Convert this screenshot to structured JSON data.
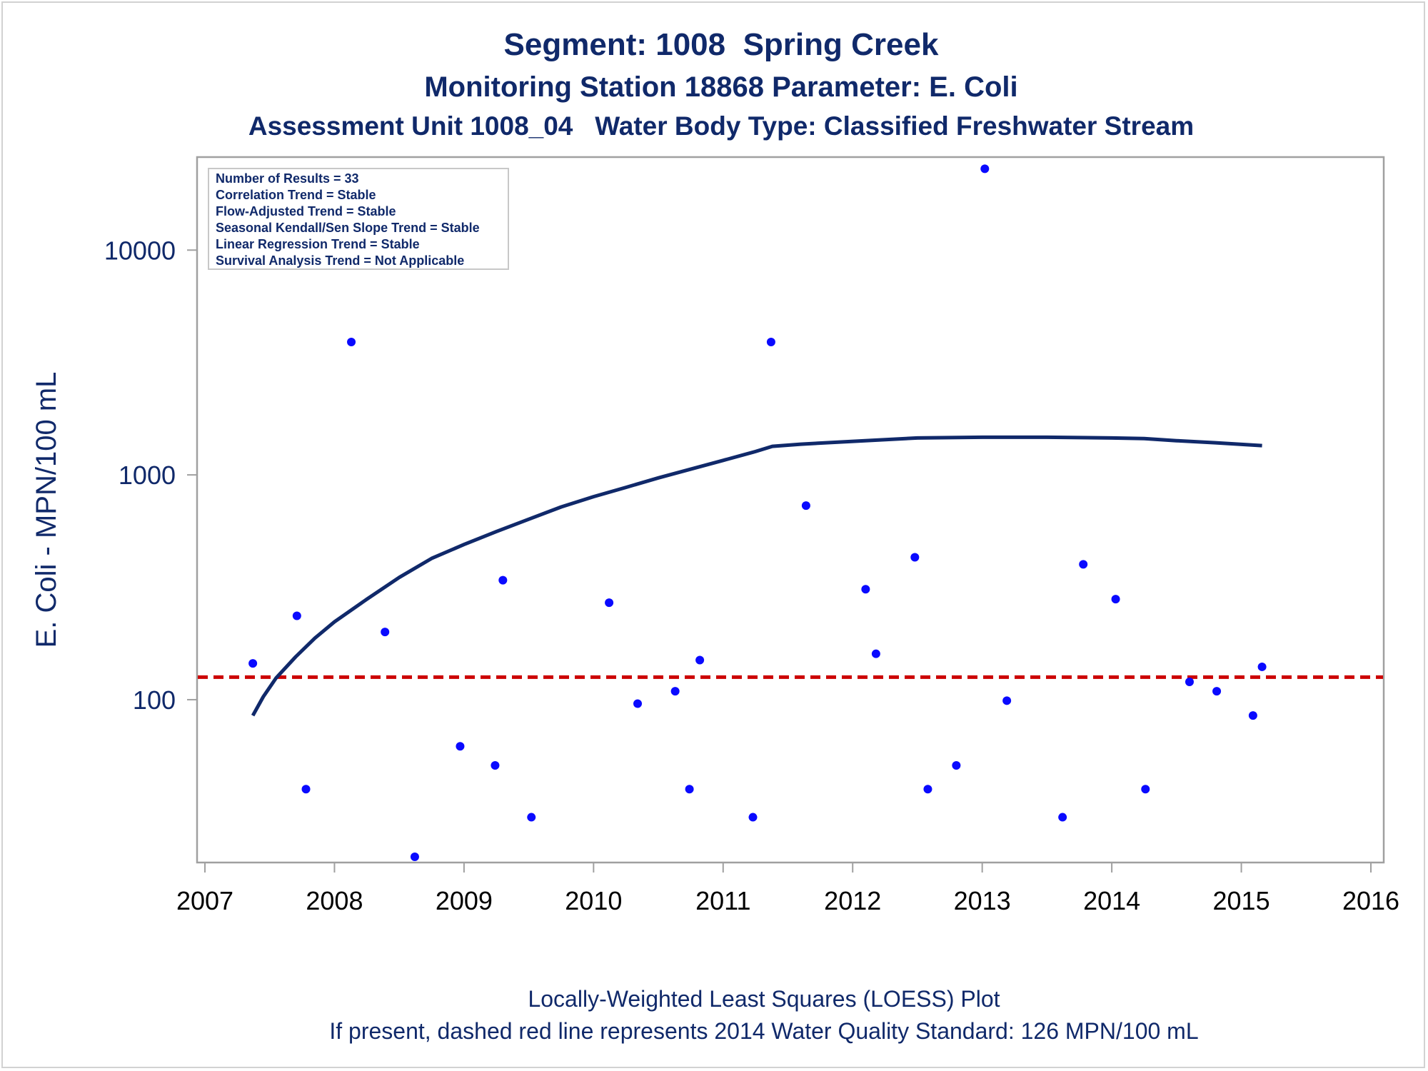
{
  "titles": {
    "line1": "Segment: 1008  Spring Creek",
    "line2": "Monitoring Station 18868 Parameter: E. Coli",
    "line3": "Assessment Unit 1008_04   Water Body Type: Classified Freshwater Stream"
  },
  "footer": {
    "line1": "Locally-Weighted Least Squares (LOESS) Plot",
    "line2": "If present, dashed red line represents 2014 Water Quality Standard: 126 MPN/100 mL"
  },
  "chart_data": {
    "type": "scatter",
    "ylabel": "E. Coli - MPN/100 mL",
    "xlabel": "",
    "y_scale": "log",
    "xlim": [
      2007,
      2016
    ],
    "ylim": [
      20,
      25000
    ],
    "x_ticks": [
      "2007",
      "2008",
      "2009",
      "2010",
      "2011",
      "2012",
      "2013",
      "2014",
      "2015",
      "2016"
    ],
    "y_ticks": [
      "100",
      "1000",
      "10000"
    ],
    "grid": false,
    "info_box": [
      "Number of Results = 33",
      "Correlation Trend = Stable",
      "Flow-Adjusted Trend = Stable",
      "Seasonal Kendall/Sen Slope Trend = Stable",
      "Linear Regression Trend = Stable",
      "Survival Analysis Trend = Not Applicable"
    ],
    "standard_line": {
      "value": 126,
      "color": "#cc0000",
      "style": "dashed"
    },
    "colors": {
      "points": "#0a0aff",
      "loess": "#10296a",
      "axis_text": "#10296a",
      "tick_text": "#000000"
    },
    "series": [
      {
        "type": "scatter",
        "points": [
          [
            2007.37,
            145
          ],
          [
            2007.71,
            236
          ],
          [
            2007.78,
            40
          ],
          [
            2008.13,
            3900
          ],
          [
            2008.39,
            200
          ],
          [
            2008.62,
            20
          ],
          [
            2008.97,
            62
          ],
          [
            2009.24,
            51
          ],
          [
            2009.3,
            340
          ],
          [
            2009.52,
            30
          ],
          [
            2010.12,
            270
          ],
          [
            2010.34,
            96
          ],
          [
            2010.63,
            109
          ],
          [
            2010.74,
            40
          ],
          [
            2010.82,
            150
          ],
          [
            2011.23,
            30
          ],
          [
            2011.37,
            3900
          ],
          [
            2011.64,
            730
          ],
          [
            2012.1,
            310
          ],
          [
            2012.18,
            160
          ],
          [
            2012.48,
            430
          ],
          [
            2012.58,
            40
          ],
          [
            2012.8,
            51
          ],
          [
            2013.02,
            23000
          ],
          [
            2013.19,
            99
          ],
          [
            2013.62,
            30
          ],
          [
            2013.78,
            400
          ],
          [
            2014.03,
            280
          ],
          [
            2014.26,
            40
          ],
          [
            2014.6,
            120
          ],
          [
            2014.81,
            109
          ],
          [
            2015.09,
            85
          ],
          [
            2015.16,
            140
          ]
        ]
      },
      {
        "type": "line",
        "points": [
          [
            2007.37,
            85
          ],
          [
            2007.45,
            103
          ],
          [
            2007.55,
            125
          ],
          [
            2007.7,
            155
          ],
          [
            2007.85,
            188
          ],
          [
            2008.0,
            222
          ],
          [
            2008.25,
            280
          ],
          [
            2008.5,
            350
          ],
          [
            2008.75,
            425
          ],
          [
            2009.0,
            490
          ],
          [
            2009.25,
            560
          ],
          [
            2009.5,
            635
          ],
          [
            2009.75,
            720
          ],
          [
            2010.0,
            800
          ],
          [
            2010.25,
            880
          ],
          [
            2010.5,
            970
          ],
          [
            2010.75,
            1060
          ],
          [
            2011.0,
            1160
          ],
          [
            2011.25,
            1270
          ],
          [
            2011.38,
            1340
          ],
          [
            2011.6,
            1370
          ],
          [
            2011.9,
            1400
          ],
          [
            2012.2,
            1430
          ],
          [
            2012.5,
            1460
          ],
          [
            2013.0,
            1470
          ],
          [
            2013.5,
            1470
          ],
          [
            2014.0,
            1460
          ],
          [
            2014.25,
            1450
          ],
          [
            2014.5,
            1420
          ],
          [
            2014.8,
            1390
          ],
          [
            2015.16,
            1350
          ]
        ]
      }
    ]
  }
}
